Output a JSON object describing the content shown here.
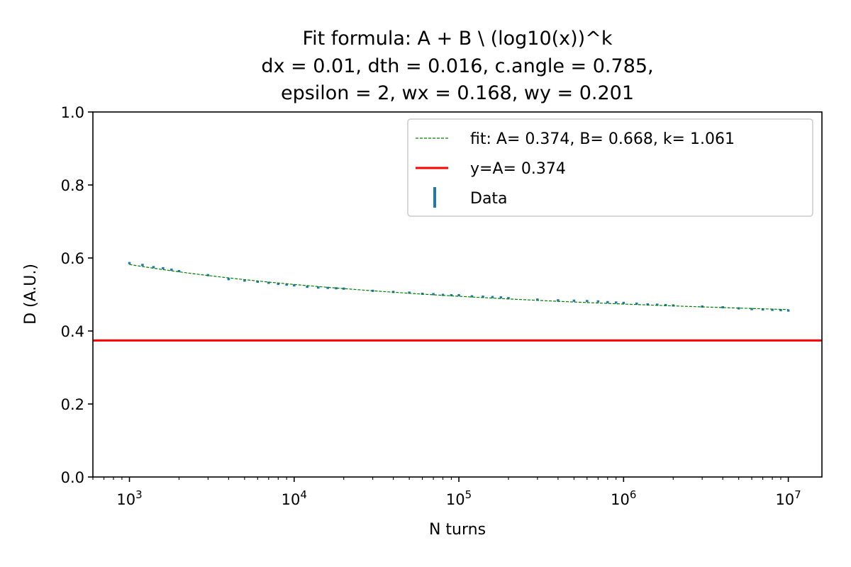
{
  "chart_data": {
    "type": "scatter",
    "title_lines": [
      "Fit formula: A + B \\ (log10(x))^k",
      "dx = 0.01, dth = 0.016, c.angle = 0.785,",
      "epsilon =  2, wx = 0.168, wy = 0.201"
    ],
    "xlabel": "N turns",
    "ylabel": "D (A.U.)",
    "x_scale": "log",
    "xlim": [
      600,
      16000000
    ],
    "ylim": [
      0.0,
      1.0
    ],
    "y_ticks": [
      "0.0",
      "0.2",
      "0.4",
      "0.6",
      "0.8",
      "1.0"
    ],
    "x_ticks": [
      {
        "base": "10",
        "exp": "3"
      },
      {
        "base": "10",
        "exp": "4"
      },
      {
        "base": "10",
        "exp": "5"
      },
      {
        "base": "10",
        "exp": "6"
      },
      {
        "base": "10",
        "exp": "7"
      }
    ],
    "grid": false,
    "legend_position": "upper-right",
    "colors": {
      "data": "#1f77b4",
      "fit": "#008000",
      "asymptote": "#ff0000"
    },
    "fit": {
      "A": 0.374,
      "B": 0.668,
      "k": 1.061
    },
    "legend": [
      {
        "label": "fit: A= 0.374, B= 0.668, k= 1.061",
        "style": "dashed",
        "color": "#008000"
      },
      {
        "label": "y=A= 0.374",
        "style": "solid",
        "color": "#ff0000"
      },
      {
        "label": "Data",
        "style": "errorbar",
        "color": "#1f77b4"
      }
    ],
    "series": [
      {
        "name": "Data",
        "x": [
          1000,
          1200,
          1400,
          1600,
          1800,
          2000,
          3000,
          4000,
          5000,
          6000,
          7000,
          8000,
          9000,
          10000,
          12000,
          14000,
          16000,
          18000,
          20000,
          30000,
          40000,
          50000,
          60000,
          70000,
          80000,
          90000,
          100000,
          120000,
          140000,
          160000,
          180000,
          200000,
          300000,
          400000,
          500000,
          600000,
          700000,
          800000,
          900000,
          1000000,
          1200000,
          1400000,
          1600000,
          1800000,
          2000000,
          3000000,
          4000000,
          5000000,
          6000000,
          7000000,
          8000000,
          9000000,
          10000000
        ],
        "y": [
          0.586,
          0.581,
          0.575,
          0.572,
          0.568,
          0.564,
          0.553,
          0.542,
          0.538,
          0.535,
          0.532,
          0.529,
          0.527,
          0.525,
          0.521,
          0.519,
          0.518,
          0.517,
          0.516,
          0.51,
          0.507,
          0.505,
          0.502,
          0.501,
          0.499,
          0.498,
          0.498,
          0.495,
          0.494,
          0.493,
          0.492,
          0.49,
          0.486,
          0.484,
          0.483,
          0.482,
          0.481,
          0.479,
          0.478,
          0.477,
          0.475,
          0.473,
          0.472,
          0.471,
          0.47,
          0.467,
          0.465,
          0.462,
          0.46,
          0.459,
          0.458,
          0.457,
          0.456
        ],
        "error": 0.003
      }
    ]
  }
}
